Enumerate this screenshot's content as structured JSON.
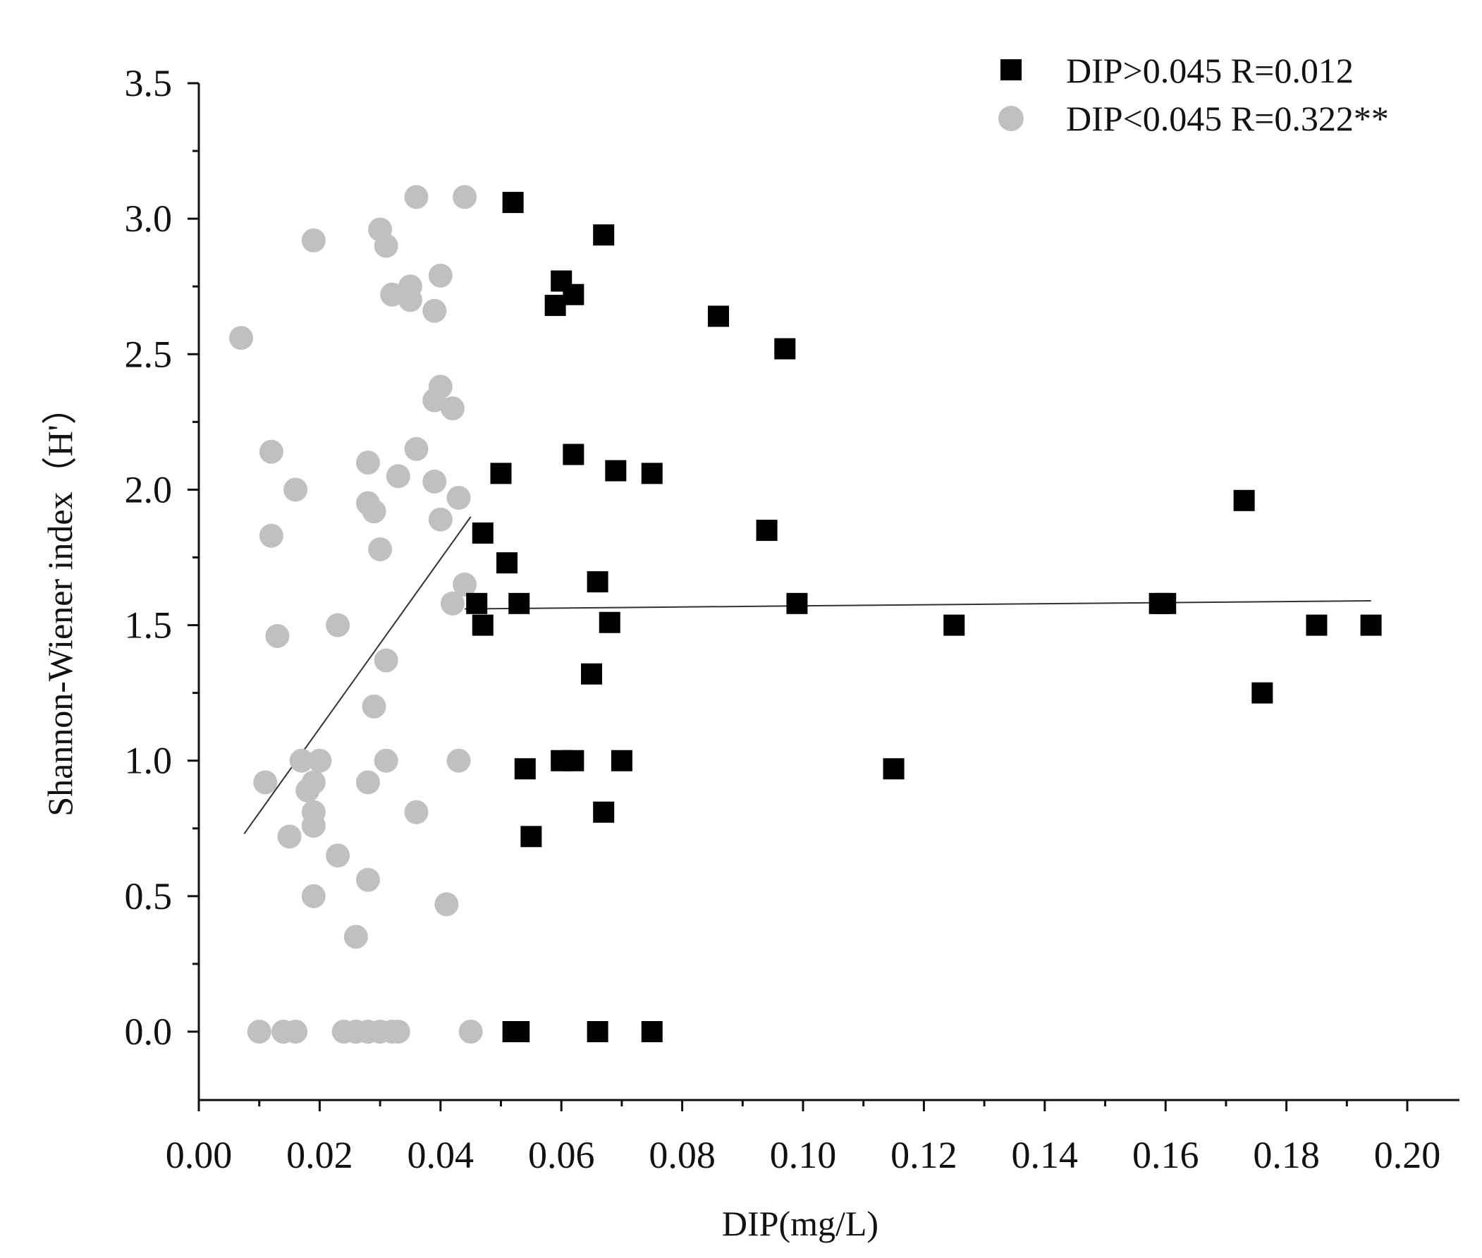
{
  "chart_data": {
    "type": "scatter",
    "xlabel": "DIP(mg/L)",
    "ylabel": "Shannon-Wiener index（H'）",
    "xlim": [
      0.0,
      0.21
    ],
    "ylim": [
      -0.25,
      3.5
    ],
    "x_ticks": [
      "0.00",
      "0.02",
      "0.04",
      "0.06",
      "0.08",
      "0.10",
      "0.12",
      "0.14",
      "0.16",
      "0.18",
      "0.20"
    ],
    "y_ticks": [
      "0.0",
      "0.5",
      "1.0",
      "1.5",
      "2.0",
      "2.5",
      "3.0",
      "3.5"
    ],
    "grid": false,
    "legend_position": "top-right",
    "series": [
      {
        "name": "DIP>0.045 R=0.012",
        "marker": "square",
        "color": "#000000",
        "points": [
          [
            0.052,
            3.06
          ],
          [
            0.067,
            2.94
          ],
          [
            0.06,
            2.77
          ],
          [
            0.062,
            2.72
          ],
          [
            0.059,
            2.68
          ],
          [
            0.086,
            2.64
          ],
          [
            0.097,
            2.52
          ],
          [
            0.062,
            2.13
          ],
          [
            0.069,
            2.07
          ],
          [
            0.075,
            2.06
          ],
          [
            0.05,
            2.06
          ],
          [
            0.094,
            1.85
          ],
          [
            0.047,
            1.84
          ],
          [
            0.051,
            1.73
          ],
          [
            0.066,
            1.66
          ],
          [
            0.046,
            1.58
          ],
          [
            0.053,
            1.58
          ],
          [
            0.099,
            1.58
          ],
          [
            0.159,
            1.58
          ],
          [
            0.16,
            1.58
          ],
          [
            0.068,
            1.51
          ],
          [
            0.047,
            1.5
          ],
          [
            0.125,
            1.5
          ],
          [
            0.185,
            1.5
          ],
          [
            0.194,
            1.5
          ],
          [
            0.065,
            1.32
          ],
          [
            0.176,
            1.25
          ],
          [
            0.173,
            1.96
          ],
          [
            0.06,
            1.0
          ],
          [
            0.062,
            1.0
          ],
          [
            0.07,
            1.0
          ],
          [
            0.054,
            0.97
          ],
          [
            0.115,
            0.97
          ],
          [
            0.067,
            0.81
          ],
          [
            0.055,
            0.72
          ],
          [
            0.052,
            0.0
          ],
          [
            0.053,
            0.0
          ],
          [
            0.066,
            0.0
          ],
          [
            0.075,
            0.0
          ]
        ],
        "trend": [
          [
            0.044,
            1.56
          ],
          [
            0.194,
            1.59
          ]
        ]
      },
      {
        "name": "DIP<0.045 R=0.322**",
        "marker": "circle",
        "color": "#c0c0c0",
        "points": [
          [
            0.036,
            3.08
          ],
          [
            0.044,
            3.08
          ],
          [
            0.03,
            2.96
          ],
          [
            0.019,
            2.92
          ],
          [
            0.031,
            2.9
          ],
          [
            0.04,
            2.79
          ],
          [
            0.035,
            2.75
          ],
          [
            0.032,
            2.72
          ],
          [
            0.035,
            2.7
          ],
          [
            0.039,
            2.66
          ],
          [
            0.007,
            2.56
          ],
          [
            0.04,
            2.38
          ],
          [
            0.039,
            2.33
          ],
          [
            0.042,
            2.3
          ],
          [
            0.036,
            2.15
          ],
          [
            0.012,
            2.14
          ],
          [
            0.028,
            2.1
          ],
          [
            0.033,
            2.05
          ],
          [
            0.039,
            2.03
          ],
          [
            0.016,
            2.0
          ],
          [
            0.043,
            1.97
          ],
          [
            0.028,
            1.95
          ],
          [
            0.029,
            1.92
          ],
          [
            0.04,
            1.89
          ],
          [
            0.012,
            1.83
          ],
          [
            0.03,
            1.78
          ],
          [
            0.044,
            1.65
          ],
          [
            0.042,
            1.58
          ],
          [
            0.023,
            1.5
          ],
          [
            0.013,
            1.46
          ],
          [
            0.031,
            1.37
          ],
          [
            0.029,
            1.2
          ],
          [
            0.017,
            1.0
          ],
          [
            0.02,
            1.0
          ],
          [
            0.031,
            1.0
          ],
          [
            0.043,
            1.0
          ],
          [
            0.011,
            0.92
          ],
          [
            0.019,
            0.92
          ],
          [
            0.028,
            0.92
          ],
          [
            0.018,
            0.89
          ],
          [
            0.019,
            0.81
          ],
          [
            0.036,
            0.81
          ],
          [
            0.019,
            0.76
          ],
          [
            0.015,
            0.72
          ],
          [
            0.023,
            0.65
          ],
          [
            0.028,
            0.56
          ],
          [
            0.019,
            0.5
          ],
          [
            0.041,
            0.47
          ],
          [
            0.026,
            0.35
          ],
          [
            0.01,
            0.0
          ],
          [
            0.014,
            0.0
          ],
          [
            0.016,
            0.0
          ],
          [
            0.024,
            0.0
          ],
          [
            0.026,
            0.0
          ],
          [
            0.028,
            0.0
          ],
          [
            0.03,
            0.0
          ],
          [
            0.032,
            0.0
          ],
          [
            0.033,
            0.0
          ],
          [
            0.045,
            0.0
          ]
        ],
        "trend": [
          [
            0.0075,
            0.73
          ],
          [
            0.045,
            1.9
          ]
        ]
      }
    ]
  }
}
